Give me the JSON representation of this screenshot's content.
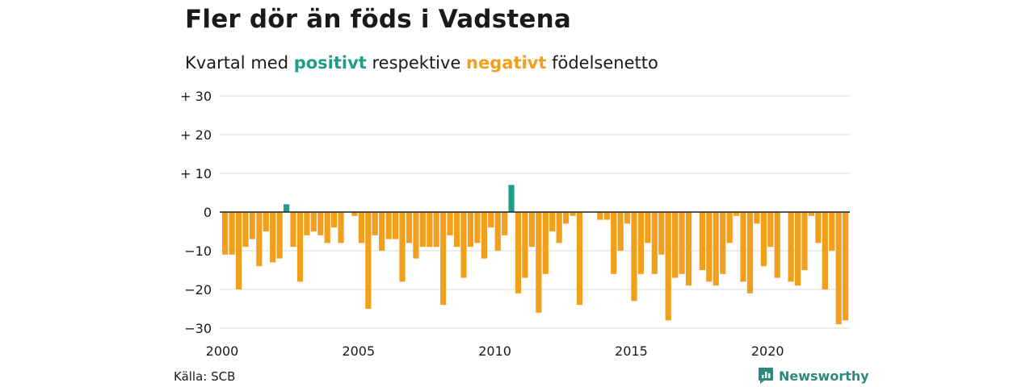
{
  "title": "Fler dör än föds i Vadstena",
  "subtitle": {
    "part1": "Kvartal med ",
    "positive_word": "positivt",
    "part2": " respektive ",
    "negative_word": "negativt",
    "part3": " födelsenetto"
  },
  "source": "Källa: SCB",
  "brand": "Newsworthy",
  "colors": {
    "positive": "#1f9d8a",
    "negative": "#f29f1c",
    "grid": "#d9d9d9",
    "zero": "#222222"
  },
  "chart_data": {
    "type": "bar",
    "ylim": [
      -30,
      30
    ],
    "y_ticks": [
      {
        "value": 30,
        "label": "+ 30"
      },
      {
        "value": 20,
        "label": "+ 20"
      },
      {
        "value": 10,
        "label": "+ 10"
      },
      {
        "value": 0,
        "label": "0"
      },
      {
        "value": -10,
        "label": "−10"
      },
      {
        "value": -20,
        "label": "−20"
      },
      {
        "value": -30,
        "label": "−30"
      }
    ],
    "x_ticks": [
      "2000",
      "2005",
      "2010",
      "2015",
      "2020"
    ],
    "x_start": "2000 Q1",
    "values": [
      -11,
      -11,
      -20,
      -9,
      -7,
      -14,
      -5,
      -13,
      -12,
      2,
      -9,
      -18,
      -6,
      -5,
      -6,
      -8,
      -4,
      -8,
      0,
      -1,
      -8,
      -25,
      -6,
      -10,
      -7,
      -7,
      -18,
      -8,
      -12,
      -9,
      -9,
      -9,
      -24,
      -6,
      -9,
      -17,
      -9,
      -8,
      -12,
      -4,
      -10,
      -6,
      7,
      -21,
      -17,
      -9,
      -26,
      -16,
      -5,
      -8,
      -3,
      -1,
      -24,
      0,
      0,
      -2,
      -2,
      -16,
      -10,
      -3,
      -23,
      -16,
      -8,
      -16,
      -11,
      -28,
      -17,
      -16,
      -19,
      0,
      -15,
      -18,
      -19,
      -16,
      -8,
      -1,
      -18,
      -21,
      -3,
      -14,
      -9,
      -17,
      0,
      -18,
      -19,
      -15,
      -1,
      -8,
      -20,
      -10,
      -29,
      -28
    ]
  }
}
